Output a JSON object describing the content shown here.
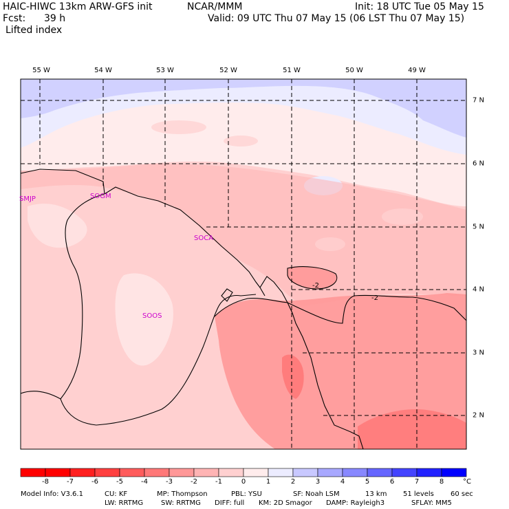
{
  "header": {
    "model": "HAIC-HIWC 13km ARW-GFS init",
    "org": "NCAR/MMM",
    "init": "Init: 18 UTC Tue 05 May 15",
    "fcst_label": "Fcst:",
    "fcst_value": "39 h",
    "valid": "Valid: 09 UTC Thu 07 May 15 (06 LST Thu 07 May 15)",
    "field": "Lifted index"
  },
  "map": {
    "lon_labels": [
      "55 W",
      "54 W",
      "53 W",
      "52 W",
      "51 W",
      "50 W",
      "49 W"
    ],
    "lat_labels": [
      "7 N",
      "6 N",
      "5 N",
      "4 N",
      "3 N",
      "2 N"
    ],
    "stations": [
      "SMJP",
      "SOGM",
      "SOCA",
      "SOOS"
    ],
    "contour_labels": [
      "-2",
      "-2"
    ]
  },
  "colorbar": {
    "ticks": [
      "-8",
      "-7",
      "-6",
      "-5",
      "-4",
      "-3",
      "-2",
      "-1",
      "0",
      "1",
      "2",
      "3",
      "4",
      "5",
      "6",
      "7",
      "8"
    ],
    "unit": "°C",
    "colors": [
      "#ff0000",
      "#ff2020",
      "#ff4040",
      "#ff5c5c",
      "#ff7878",
      "#ff9898",
      "#ffb4b4",
      "#ffd0d0",
      "#ffecec",
      "#ececff",
      "#c8c8ff",
      "#a8a8ff",
      "#8888ff",
      "#6666ff",
      "#4444ff",
      "#2222ff",
      "#0000ff"
    ]
  },
  "footer": {
    "line1": [
      "Model Info: V3.6.1",
      "CU: KF",
      "MP: Thompson",
      "PBL: YSU",
      "SF: Noah LSM",
      "13 km",
      "51 levels",
      "60 sec"
    ],
    "line2": [
      "LW: RRTMG",
      "SW: RRTMG",
      "DIFF: full",
      "KM: 2D Smagor",
      "DAMP: Rayleigh3",
      "SFLAY: MM5"
    ]
  }
}
